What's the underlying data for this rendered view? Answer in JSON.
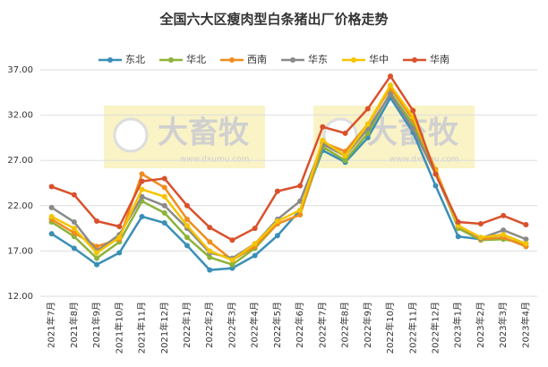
{
  "chart_data": {
    "type": "line",
    "title": "全国六大区瘦肉型白条猪出厂价格走势",
    "watermark": [
      "大畜牧",
      "www.dxumu.com"
    ],
    "categories": [
      "2021年7月",
      "2021年8月",
      "2021年9月",
      "2021年10月",
      "2021年11月",
      "2021年12月",
      "2022年1月",
      "2022年2月",
      "2022年3月",
      "2022年4月",
      "2022年5月",
      "2022年6月",
      "2022年7月",
      "2022年8月",
      "2022年9月",
      "2022年10月",
      "2022年11月",
      "2022年12月",
      "2023年1月",
      "2023年2月",
      "2023年3月",
      "2023年4月"
    ],
    "series": [
      {
        "name": "东北",
        "color": "#3a8fb7",
        "values": [
          18.9,
          17.3,
          15.5,
          16.8,
          20.8,
          20.1,
          17.6,
          14.9,
          15.1,
          16.5,
          18.7,
          21.5,
          28.1,
          26.8,
          29.5,
          33.9,
          30.1,
          24.2,
          18.6,
          18.3,
          18.5,
          17.5
        ]
      },
      {
        "name": "华北",
        "color": "#8db33a",
        "values": [
          20.2,
          18.6,
          16.2,
          18.0,
          22.5,
          21.2,
          18.5,
          16.3,
          15.5,
          17.3,
          20.0,
          21.0,
          28.5,
          27.0,
          30.0,
          34.5,
          31.0,
          25.8,
          19.5,
          18.2,
          18.3,
          17.8
        ]
      },
      {
        "name": "西南",
        "color": "#f08c1e",
        "values": [
          20.5,
          19.0,
          17.5,
          18.3,
          25.5,
          24.0,
          20.5,
          18.0,
          16.0,
          17.5,
          20.0,
          21.0,
          29.0,
          28.0,
          31.0,
          35.0,
          31.5,
          26.0,
          19.8,
          18.3,
          18.5,
          17.5
        ]
      },
      {
        "name": "华东",
        "color": "#8a8a8a",
        "values": [
          21.8,
          20.2,
          17.0,
          18.8,
          23.0,
          22.0,
          19.5,
          16.8,
          16.2,
          17.8,
          20.5,
          22.5,
          28.8,
          27.5,
          30.5,
          34.3,
          30.5,
          25.5,
          19.8,
          18.4,
          19.3,
          18.3
        ]
      },
      {
        "name": "华中",
        "color": "#f5c400",
        "values": [
          20.8,
          19.5,
          16.8,
          18.5,
          23.8,
          23.0,
          19.8,
          17.0,
          16.0,
          17.8,
          20.3,
          21.5,
          29.2,
          27.5,
          31.0,
          35.3,
          31.8,
          25.8,
          19.8,
          18.5,
          18.8,
          17.8
        ]
      },
      {
        "name": "华南",
        "color": "#d9512c",
        "values": [
          24.1,
          23.2,
          20.3,
          19.7,
          24.7,
          25.0,
          22.0,
          19.6,
          18.2,
          19.5,
          23.6,
          24.2,
          30.7,
          30.0,
          32.7,
          36.3,
          32.5,
          25.5,
          20.2,
          20.0,
          20.9,
          19.9
        ]
      }
    ],
    "ylim": [
      12,
      37
    ],
    "yticks": [
      {
        "value": 12,
        "label": "12.00"
      },
      {
        "value": 17,
        "label": "17.00"
      },
      {
        "value": 22,
        "label": "22.00"
      },
      {
        "value": 27,
        "label": "27.00"
      },
      {
        "value": 32,
        "label": "32.00"
      },
      {
        "value": 37,
        "label": "37.00"
      }
    ],
    "grid": true,
    "legend": "top"
  }
}
